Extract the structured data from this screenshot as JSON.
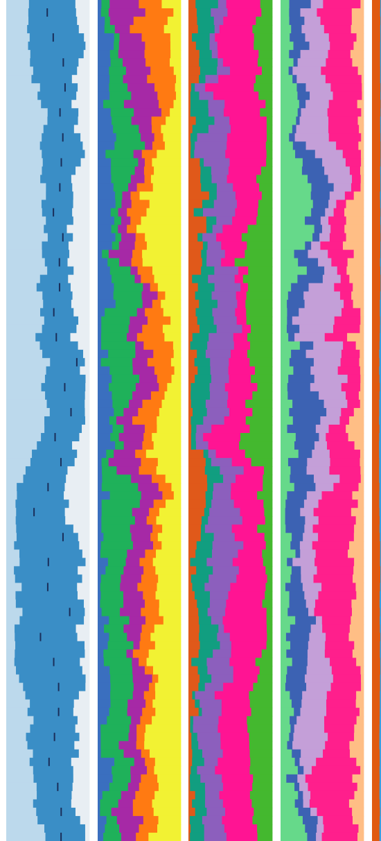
{
  "chart_data": {
    "type": "bar",
    "orientation": "horizontal",
    "stacked": true,
    "faceted": true,
    "rows": 101,
    "xlabel": "",
    "ylabel": "",
    "grid": false,
    "legend": "none",
    "panels": [
      {
        "name": "",
        "xlim": [
          0,
          100
        ],
        "colors": [
          "#bcd9ec",
          "#3a8ec6",
          "#e8eef3"
        ],
        "background": "#f2f2f2",
        "seed": 11,
        "base": [
          28,
          57,
          15
        ],
        "variation": 22,
        "dash_color": "#1a2e5a"
      },
      {
        "name": "",
        "xlim": [
          0,
          100
        ],
        "colors": [
          "#3a6fbf",
          "#1fb15a",
          "#a629a6",
          "#ff7a12",
          "#f2f233"
        ],
        "background": "#ffffff",
        "seed": 23,
        "base": [
          10,
          18,
          24,
          26,
          22
        ],
        "variation": 24
      },
      {
        "name": "",
        "xlim": [
          0,
          100
        ],
        "colors": [
          "#e0591a",
          "#119e80",
          "#8c5fbd",
          "#ff1493",
          "#44b82f"
        ],
        "background": "#ffffff",
        "seed": 37,
        "base": [
          8,
          14,
          22,
          34,
          22
        ],
        "variation": 26
      },
      {
        "name": "",
        "xlim": [
          0,
          100
        ],
        "colors": [
          "#66d98a",
          "#3c62b3",
          "#c49fd8",
          "#ff1f8c",
          "#ffbe85"
        ],
        "background": "#ffffff",
        "seed": 53,
        "base": [
          20,
          16,
          24,
          30,
          10
        ],
        "variation": 24
      },
      {
        "name": "",
        "xlim": [
          0,
          100
        ],
        "colors": [
          "#e05a10",
          "#3a9ee0"
        ],
        "background": "#ffffff",
        "seed": 71,
        "base": [
          88,
          12
        ],
        "variation": 10
      }
    ]
  }
}
